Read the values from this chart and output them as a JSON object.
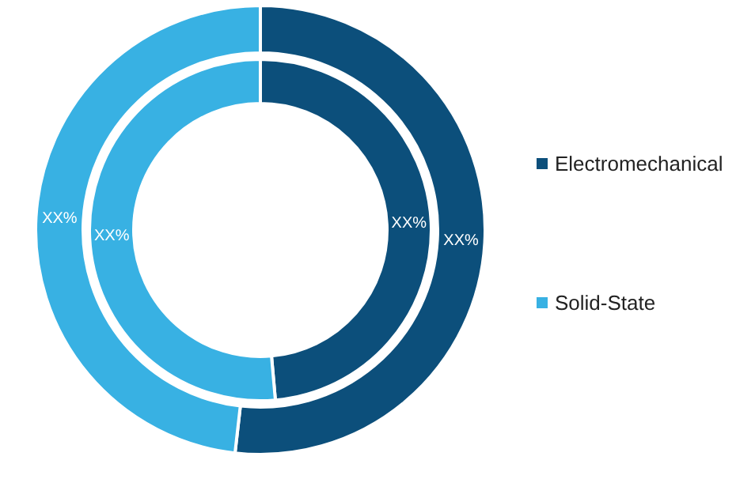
{
  "chart_data": {
    "type": "donut",
    "categories": [
      "Electromechanical",
      "Solid-State"
    ],
    "colors": [
      "#0c4f7b",
      "#38b1e3"
    ],
    "series": [
      {
        "values": [
          48.6,
          51.4
        ],
        "value_labels": [
          "XX%",
          "XX%"
        ]
      },
      {
        "values": [
          51.8,
          48.2
        ],
        "value_labels": [
          "XX%",
          "XX%"
        ]
      }
    ],
    "legend": "right"
  }
}
